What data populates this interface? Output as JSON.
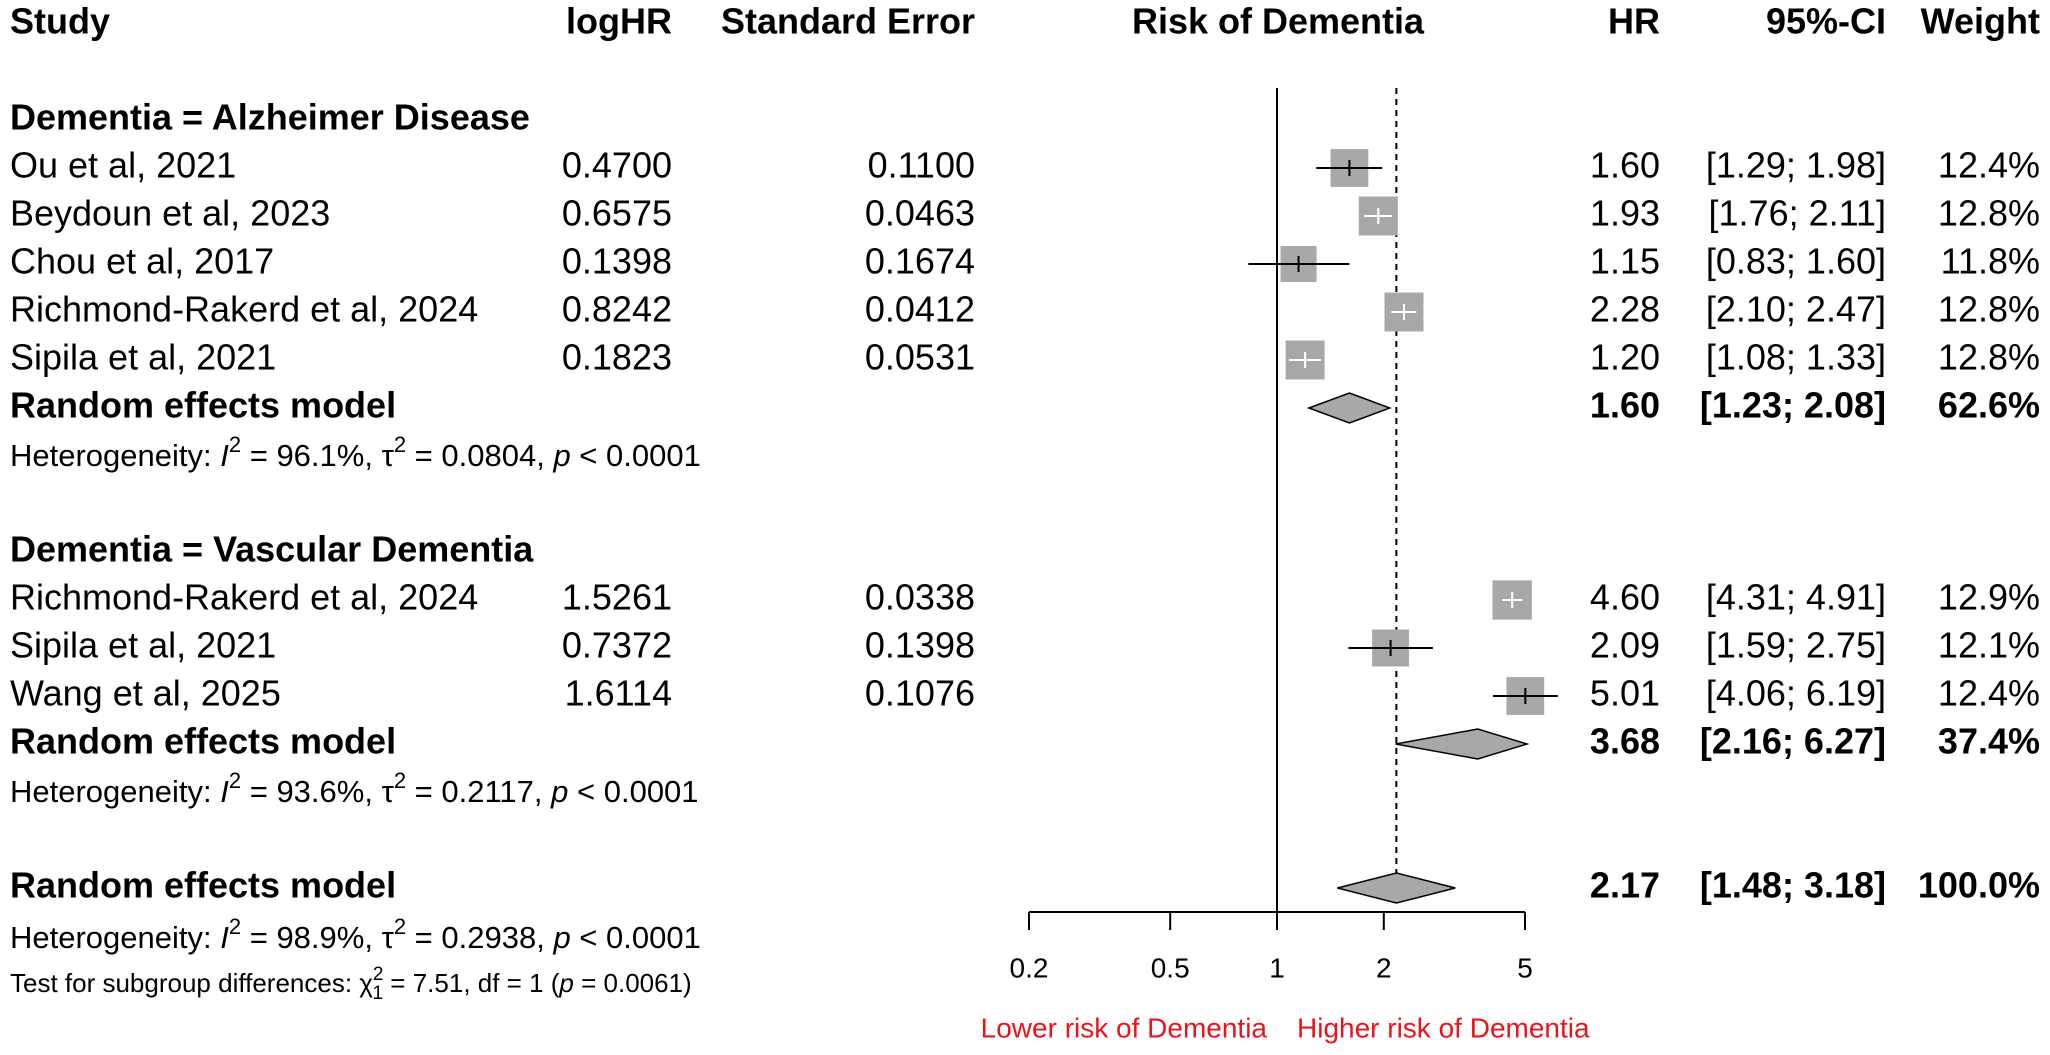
{
  "headers": {
    "study": "Study",
    "loghr": "logHR",
    "se": "Standard Error",
    "plot": "Risk of Dementia",
    "hr": "HR",
    "ci": "95%-CI",
    "weight": "Weight"
  },
  "groups": [
    {
      "label": "Dementia = Alzheimer Disease",
      "studies": [
        {
          "name": "Ou et al, 2021",
          "loghr": "0.4700",
          "se": "0.1100",
          "hr": "1.60",
          "ci": "[1.29; 1.98]",
          "weight": "12.4%"
        },
        {
          "name": "Beydoun et al, 2023",
          "loghr": "0.6575",
          "se": "0.0463",
          "hr": "1.93",
          "ci": "[1.76; 2.11]",
          "weight": "12.8%"
        },
        {
          "name": "Chou et al, 2017",
          "loghr": "0.1398",
          "se": "0.1674",
          "hr": "1.15",
          "ci": "[0.83; 1.60]",
          "weight": "11.8%"
        },
        {
          "name": "Richmond-Rakerd et al, 2024",
          "loghr": "0.8242",
          "se": "0.0412",
          "hr": "2.28",
          "ci": "[2.10; 2.47]",
          "weight": "12.8%"
        },
        {
          "name": "Sipila et al, 2021",
          "loghr": "0.1823",
          "se": "0.0531",
          "hr": "1.20",
          "ci": "[1.08; 1.33]",
          "weight": "12.8%"
        }
      ],
      "model": {
        "label": "Random effects model",
        "hr": "1.60",
        "ci": "[1.23; 2.08]",
        "weight": "62.6%"
      },
      "heterogeneity": {
        "prefix": "Heterogeneity: ",
        "i2": " = 96.1%, ",
        "tau2": " = 0.0804, ",
        "p": " < 0.0001"
      }
    },
    {
      "label": "Dementia = Vascular Dementia",
      "studies": [
        {
          "name": "Richmond-Rakerd et al, 2024",
          "loghr": "1.5261",
          "se": "0.0338",
          "hr": "4.60",
          "ci": "[4.31; 4.91]",
          "weight": "12.9%"
        },
        {
          "name": "Sipila et al, 2021",
          "loghr": "0.7372",
          "se": "0.1398",
          "hr": "2.09",
          "ci": "[1.59; 2.75]",
          "weight": "12.1%"
        },
        {
          "name": "Wang et al, 2025",
          "loghr": "1.6114",
          "se": "0.1076",
          "hr": "5.01",
          "ci": "[4.06; 6.19]",
          "weight": "12.4%"
        }
      ],
      "model": {
        "label": "Random effects model",
        "hr": "3.68",
        "ci": "[2.16; 6.27]",
        "weight": "37.4%"
      },
      "heterogeneity": {
        "prefix": "Heterogeneity: ",
        "i2": " = 93.6%, ",
        "tau2": " = 0.2117, ",
        "p": " < 0.0001"
      }
    }
  ],
  "overall": {
    "label": "Random effects model",
    "hr": "2.17",
    "ci": "[1.48; 3.18]",
    "weight": "100.0%",
    "heterogeneity": {
      "prefix": "Heterogeneity: ",
      "i2": " = 98.9%, ",
      "tau2": " = 0.2938, ",
      "p": " < 0.0001"
    },
    "subgroup_test": {
      "prefix": "Test for subgroup differences: ",
      "stat": " = 7.51, df = 1 (",
      "p": " = 0.0061)"
    }
  },
  "colors": {
    "square": "#a8a8a8",
    "diamond": "#a8a8a8",
    "direction_text": "#e8141c"
  },
  "chart_data": {
    "type": "forest",
    "x_scale": "log",
    "xlim": [
      0.2,
      5
    ],
    "x_ticks": [
      0.2,
      0.5,
      1,
      2,
      5
    ],
    "x_tick_labels": [
      "0.2",
      "0.5",
      "1",
      "2",
      "5"
    ],
    "reference_line": 1,
    "overall_effect_line": 2.17,
    "direction_labels": {
      "left": "Lower risk of Dementia",
      "right": "Higher risk of Dementia"
    },
    "studies": [
      {
        "group": 0,
        "hr": 1.6,
        "lower": 1.29,
        "upper": 1.98,
        "weight": 12.4
      },
      {
        "group": 0,
        "hr": 1.93,
        "lower": 1.76,
        "upper": 2.11,
        "weight": 12.8
      },
      {
        "group": 0,
        "hr": 1.15,
        "lower": 0.83,
        "upper": 1.6,
        "weight": 11.8
      },
      {
        "group": 0,
        "hr": 2.28,
        "lower": 2.1,
        "upper": 2.47,
        "weight": 12.8
      },
      {
        "group": 0,
        "hr": 1.2,
        "lower": 1.08,
        "upper": 1.33,
        "weight": 12.8
      },
      {
        "group": 1,
        "hr": 4.6,
        "lower": 4.31,
        "upper": 4.91,
        "weight": 12.9
      },
      {
        "group": 1,
        "hr": 2.09,
        "lower": 1.59,
        "upper": 2.75,
        "weight": 12.1
      },
      {
        "group": 1,
        "hr": 5.01,
        "lower": 4.06,
        "upper": 6.19,
        "weight": 12.4
      }
    ],
    "models": [
      {
        "group": 0,
        "hr": 1.6,
        "lower": 1.23,
        "upper": 2.08
      },
      {
        "group": 1,
        "hr": 3.68,
        "lower": 2.16,
        "upper": 6.27
      },
      {
        "group": "overall",
        "hr": 2.17,
        "lower": 1.48,
        "upper": 3.18
      }
    ]
  }
}
